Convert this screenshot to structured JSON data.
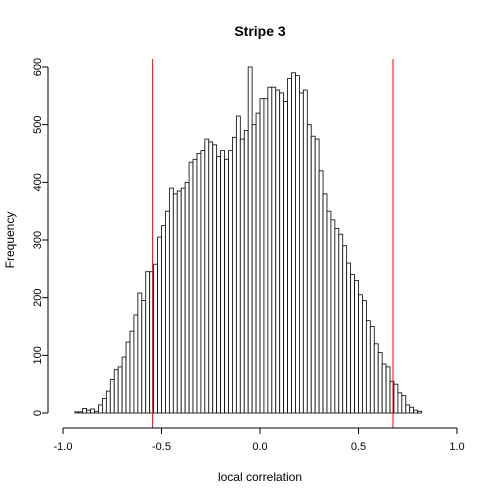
{
  "chart_data": {
    "type": "bar",
    "title": "Stripe 3",
    "xlabel": "local correlation",
    "ylabel": "Frequency",
    "xlim": [
      -1.0,
      1.0
    ],
    "ylim": [
      0,
      600
    ],
    "xticks": [
      -1.0,
      -0.5,
      0.0,
      0.5,
      1.0
    ],
    "xtick_labels": [
      "-1.0",
      "-0.5",
      "0.0",
      "0.5",
      "1.0"
    ],
    "yticks": [
      0,
      100,
      200,
      300,
      400,
      500,
      600
    ],
    "ytick_labels": [
      "0",
      "100",
      "200",
      "300",
      "400",
      "500",
      "600"
    ],
    "bin_start": -0.94,
    "bin_width": 0.02,
    "values": [
      2,
      2,
      8,
      5,
      7,
      3,
      14,
      25,
      38,
      58,
      75,
      80,
      97,
      123,
      142,
      170,
      208,
      195,
      245,
      245,
      258,
      305,
      325,
      350,
      390,
      380,
      385,
      390,
      400,
      435,
      440,
      450,
      455,
      475,
      470,
      465,
      445,
      455,
      440,
      455,
      478,
      515,
      475,
      490,
      600,
      500,
      520,
      545,
      545,
      565,
      565,
      560,
      555,
      540,
      580,
      590,
      585,
      555,
      560,
      500,
      480,
      475,
      420,
      380,
      350,
      335,
      320,
      310,
      290,
      260,
      240,
      230,
      205,
      195,
      160,
      150,
      120,
      105,
      85,
      80,
      55,
      50,
      35,
      30,
      14,
      10,
      5,
      3
    ],
    "vlines": [
      -0.545,
      0.675
    ],
    "vline_color": "#ff0000",
    "bar_fill": "#ffffff",
    "bar_stroke": "#000000",
    "grid": false
  }
}
